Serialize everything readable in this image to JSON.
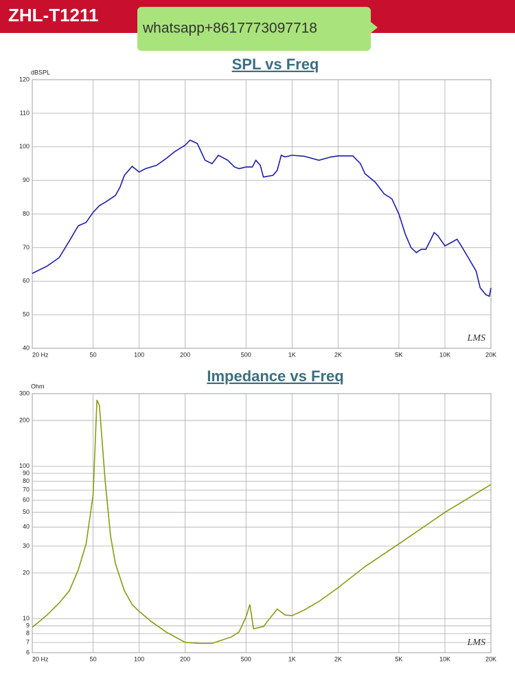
{
  "header": {
    "model": "ZHL-T1211",
    "contact": "whatsapp+8617773097718"
  },
  "chart_data": [
    {
      "type": "line",
      "title": "SPL vs Freq",
      "y_label": "dBSPL",
      "watermark": "LMS",
      "xscale": "log",
      "yscale": "linear",
      "grid": true,
      "xlim": [
        20,
        20000
      ],
      "ylim": [
        40,
        120
      ],
      "xticks": [
        {
          "value": 20,
          "label": "20 Hz"
        },
        50,
        100,
        200,
        500,
        {
          "value": 1000,
          "label": "1K"
        },
        {
          "value": 2000,
          "label": "2K"
        },
        {
          "value": 5000,
          "label": "5K"
        },
        {
          "value": 10000,
          "label": "10K"
        },
        {
          "value": 20000,
          "label": "20K"
        }
      ],
      "yticks": [
        40,
        50,
        60,
        70,
        80,
        90,
        100,
        110,
        120
      ],
      "series": [
        {
          "color": "#1c1ca8",
          "x": [
            20,
            25,
            30,
            35,
            40,
            45,
            50,
            55,
            60,
            70,
            75,
            80,
            90,
            100,
            110,
            130,
            150,
            170,
            200,
            215,
            240,
            270,
            300,
            330,
            380,
            420,
            450,
            500,
            550,
            580,
            620,
            650,
            750,
            800,
            850,
            900,
            1000,
            1200,
            1500,
            1800,
            2000,
            2500,
            2800,
            3000,
            3500,
            4000,
            4500,
            5000,
            5500,
            6000,
            6500,
            7000,
            7500,
            8000,
            8500,
            9000,
            10000,
            11000,
            12000,
            13000,
            14000,
            16000,
            17000,
            18500,
            19500,
            20000
          ],
          "values": [
            62.3,
            64.5,
            67,
            72,
            76.5,
            77.5,
            80.5,
            82.5,
            83.5,
            85.5,
            88,
            91.5,
            94.2,
            92.5,
            93.5,
            94.5,
            96.5,
            98.5,
            100.5,
            102,
            101,
            96,
            95,
            97.5,
            96,
            94,
            93.5,
            94,
            94,
            96,
            94.5,
            91,
            91.5,
            93,
            97.5,
            97,
            97.5,
            97.2,
            96,
            97,
            97.3,
            97.3,
            95,
            92,
            89.5,
            86,
            84.5,
            80,
            74,
            70,
            68.5,
            69.5,
            69.5,
            72,
            74.5,
            73.5,
            70.5,
            71.5,
            72.5,
            70,
            67.5,
            63,
            58,
            56,
            55.5,
            58
          ]
        }
      ]
    },
    {
      "type": "line",
      "title": "Impedance vs Freq",
      "y_label": "Ohm",
      "watermark": "LMS",
      "xscale": "log",
      "yscale": "log",
      "grid": true,
      "xlim": [
        20,
        20000
      ],
      "ylim": [
        6,
        300
      ],
      "xticks": [
        {
          "value": 20,
          "label": "20 Hz"
        },
        50,
        100,
        200,
        500,
        {
          "value": 1000,
          "label": "1K"
        },
        {
          "value": 2000,
          "label": "2K"
        },
        {
          "value": 5000,
          "label": "5K"
        },
        {
          "value": 10000,
          "label": "10K"
        },
        {
          "value": 20000,
          "label": "20K"
        }
      ],
      "yticks": [
        6,
        7,
        8,
        9,
        10,
        20,
        30,
        40,
        50,
        60,
        70,
        80,
        90,
        100,
        200,
        300
      ],
      "series": [
        {
          "color": "#8a9a12",
          "x": [
            20,
            25,
            30,
            35,
            40,
            45,
            50,
            53,
            55,
            60,
            65,
            70,
            80,
            90,
            100,
            120,
            150,
            200,
            250,
            300,
            400,
            450,
            500,
            530,
            560,
            650,
            800,
            900,
            1000,
            1200,
            1500,
            2000,
            3000,
            5000,
            10000,
            20000
          ],
          "values": [
            8.8,
            10.6,
            12.7,
            15.3,
            21,
            31,
            65,
            273,
            250,
            80,
            35,
            23,
            15.3,
            12.4,
            11.2,
            9.6,
            8.2,
            7.0,
            6.9,
            6.9,
            7.6,
            8.2,
            10.3,
            12.4,
            8.6,
            8.9,
            11.6,
            10.6,
            10.5,
            11.4,
            13,
            16,
            22,
            31,
            50,
            76
          ]
        }
      ]
    }
  ]
}
